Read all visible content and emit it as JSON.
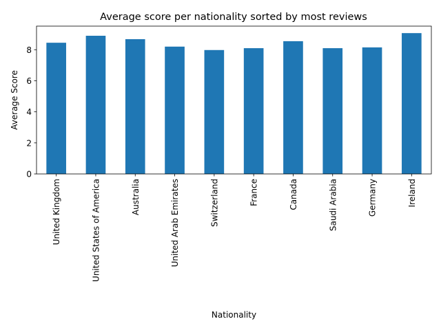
{
  "chart_data": {
    "type": "bar",
    "title": "Average score per nationality sorted by most reviews",
    "xlabel": "Nationality",
    "ylabel": "Average Score",
    "categories": [
      "United Kingdom",
      "United States of America",
      "Australia",
      "United Arab Emirates",
      "Switzerland",
      "France",
      "Canada",
      "Saudi Arabia",
      "Germany",
      "Ireland"
    ],
    "values": [
      8.45,
      8.9,
      8.68,
      8.2,
      7.98,
      8.1,
      8.55,
      8.1,
      8.15,
      9.07
    ],
    "ylim": [
      0,
      9.52
    ],
    "yticks": [
      0,
      2,
      4,
      6,
      8
    ],
    "bar_color": "#1f77b4",
    "grid": false,
    "legend": "none"
  }
}
